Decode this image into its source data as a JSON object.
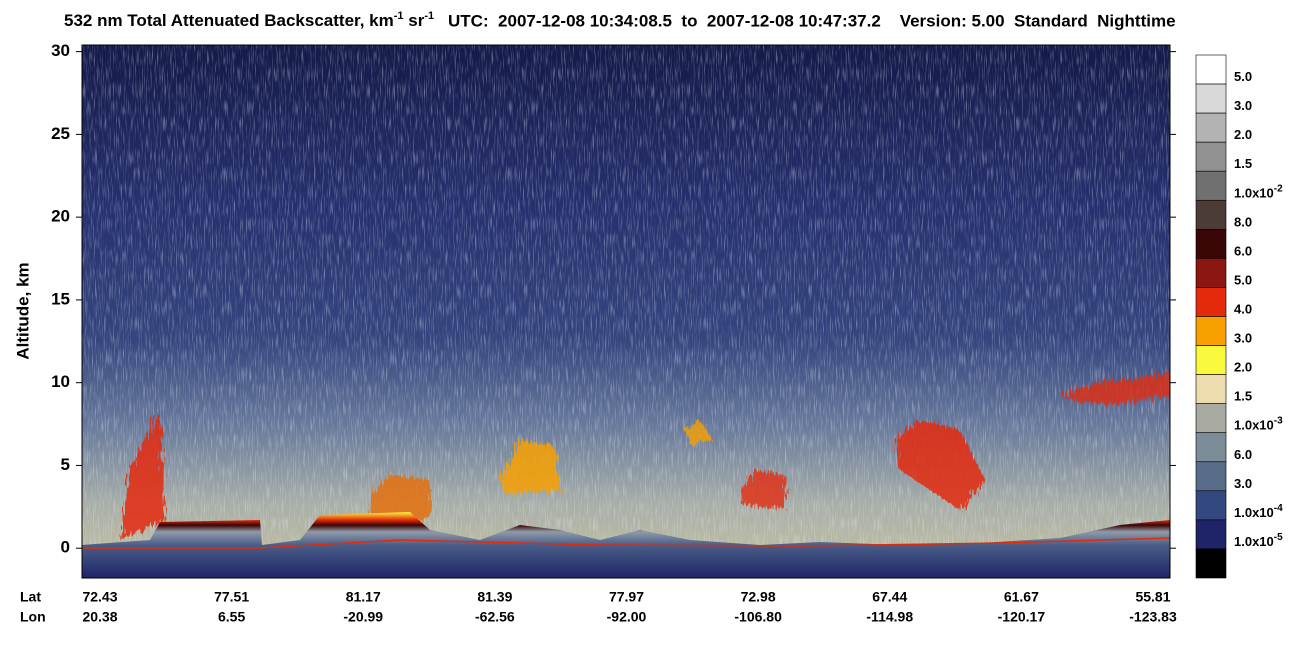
{
  "chart_data": {
    "type": "curtain",
    "title": [
      "532 nm Total Attenuated Backscatter, km",
      "-1",
      " sr",
      "-1"
    ],
    "subtitle": "UTC:  2007-12-08 10:34:08.5  to  2007-12-08 10:47:37.2    Version: 5.00  Standard  Nighttime",
    "y_label": "Altitude, km",
    "ylim": [
      -1.8,
      30.4
    ],
    "yticks": [
      0,
      5,
      10,
      15,
      20,
      25,
      30
    ],
    "category_rows": [
      {
        "name": "Lat",
        "labels": [
          "72.43",
          "77.51",
          "81.17",
          "81.39",
          "77.97",
          "72.98",
          "67.44",
          "61.67",
          "55.81"
        ]
      },
      {
        "name": "Lon",
        "labels": [
          "20.38",
          "6.55",
          "-20.99",
          "-62.56",
          "-92.00",
          "-106.80",
          "-114.98",
          "-120.17",
          "-123.83"
        ]
      }
    ],
    "colorbar": {
      "colors": [
        "#ffffff",
        "#d9d9d9",
        "#b3b3b3",
        "#919191",
        "#707070",
        "#4b3c37",
        "#3a0606",
        "#8c1610",
        "#e42a0a",
        "#f8a000",
        "#f9f93e",
        "#ecdcae",
        "#a9aaa1",
        "#7d8c99",
        "#576c89",
        "#344880",
        "#1f2468",
        "#000000"
      ],
      "labels": [
        {
          "text": "5.0"
        },
        {
          "text": "3.0"
        },
        {
          "text": "2.0"
        },
        {
          "text": "1.5"
        },
        {
          "text": "1.0x10",
          "sup": "-2"
        },
        {
          "text": "8.0"
        },
        {
          "text": "6.0"
        },
        {
          "text": "5.0"
        },
        {
          "text": "4.0"
        },
        {
          "text": "3.0"
        },
        {
          "text": "2.0"
        },
        {
          "text": "1.5"
        },
        {
          "text": "1.0x10",
          "sup": "-3"
        },
        {
          "text": "6.0"
        },
        {
          "text": "3.0"
        },
        {
          "text": "1.0x10",
          "sup": "-4"
        },
        {
          "text": "1.0x10",
          "sup": "-5"
        }
      ]
    }
  }
}
